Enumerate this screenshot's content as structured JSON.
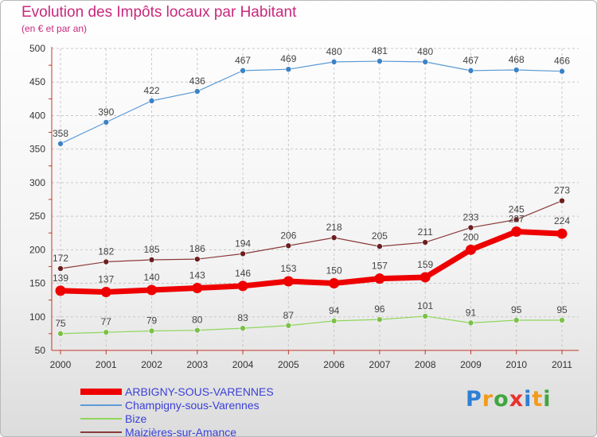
{
  "title": "Evolution des Impôts locaux par Habitant",
  "subtitle": "(en € et par an)",
  "brand": {
    "letters": [
      "P",
      "r",
      "o",
      "x",
      "i",
      "t",
      "i"
    ],
    "colors": [
      "#2e7fd6",
      "#f29a1b",
      "#3fa63f",
      "#e8322e",
      "#2e7fd6",
      "#f29a1b",
      "#3fa63f"
    ]
  },
  "chart_data": {
    "type": "line",
    "x": [
      "2000",
      "2001",
      "2002",
      "2003",
      "2004",
      "2005",
      "2006",
      "2007",
      "2008",
      "2009",
      "2010",
      "2011"
    ],
    "ylim": [
      50,
      500
    ],
    "yticks": [
      50,
      100,
      150,
      200,
      250,
      300,
      350,
      400,
      450,
      500
    ],
    "grid": true,
    "legend_position": "bottom-left",
    "series": [
      {
        "name": "Champigny-sous-Varennes",
        "color": "#5b9bd5",
        "marker": "#3c82c6",
        "values": [
          358,
          390,
          422,
          436,
          467,
          469,
          480,
          481,
          480,
          467,
          468,
          466
        ],
        "label_pos": "above",
        "width": 1.2,
        "r": 3.5
      },
      {
        "name": "Maizières-sur-Amance",
        "color": "#8b3a3a",
        "marker": "#6b1f1f",
        "values": [
          172,
          182,
          185,
          186,
          194,
          206,
          218,
          205,
          211,
          233,
          245,
          273
        ],
        "label_pos": "above",
        "width": 1.2,
        "r": 3.5
      },
      {
        "name": "Bize",
        "color": "#8fd65a",
        "marker": "#7cc04a",
        "values": [
          75,
          77,
          79,
          80,
          83,
          87,
          94,
          96,
          101,
          91,
          95,
          95
        ],
        "label_pos": "above",
        "width": 1.2,
        "r": 3.5
      },
      {
        "name": "ARBIGNY-SOUS-VARENNES",
        "color": "#ee0000",
        "marker": "#ee0000",
        "values": [
          139,
          137,
          140,
          143,
          146,
          153,
          150,
          157,
          159,
          200,
          227,
          224
        ],
        "label_pos": "above",
        "width": 7,
        "r": 6.5
      }
    ],
    "legend_order": [
      "ARBIGNY-SOUS-VARENNES",
      "Champigny-sous-Varennes",
      "Bize",
      "Maizières-sur-Amance"
    ]
  }
}
